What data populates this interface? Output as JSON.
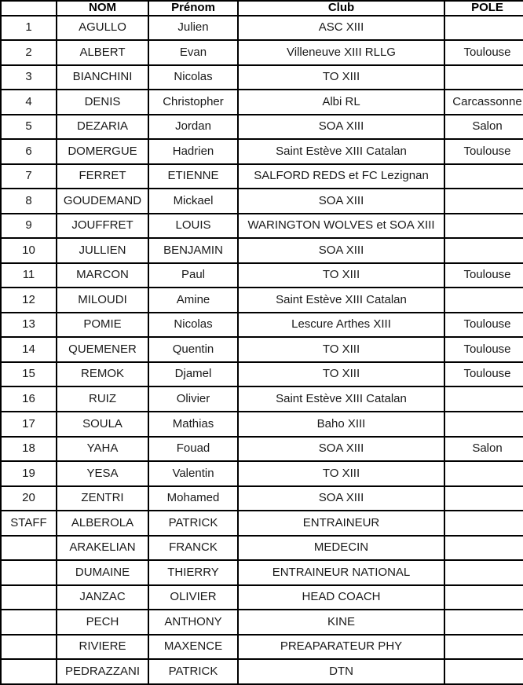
{
  "table": {
    "headers": [
      "",
      "NOM",
      "Prénom",
      "Club",
      "POLE"
    ],
    "rows": [
      [
        "1",
        "AGULLO",
        "Julien",
        "ASC XIII",
        ""
      ],
      [
        "2",
        "ALBERT",
        "Evan",
        "Villeneuve XIII RLLG",
        "Toulouse"
      ],
      [
        "3",
        "BIANCHINI",
        "Nicolas",
        "TO XIII",
        ""
      ],
      [
        "4",
        "DENIS",
        "Christopher",
        "Albi RL",
        "Carcassonne"
      ],
      [
        "5",
        "DEZARIA",
        "Jordan",
        "SOA XIII",
        "Salon"
      ],
      [
        "6",
        "DOMERGUE",
        "Hadrien",
        "Saint Estève XIII Catalan",
        "Toulouse"
      ],
      [
        "7",
        "FERRET",
        "ETIENNE",
        "SALFORD REDS et FC Lezignan",
        ""
      ],
      [
        "8",
        "GOUDEMAND",
        "Mickael",
        "SOA XIII",
        ""
      ],
      [
        "9",
        "JOUFFRET",
        "LOUIS",
        "WARINGTON WOLVES et SOA XIII",
        ""
      ],
      [
        "10",
        "JULLIEN",
        "BENJAMIN",
        "SOA XIII",
        ""
      ],
      [
        "11",
        "MARCON",
        "Paul",
        "TO XIII",
        "Toulouse"
      ],
      [
        "12",
        "MILOUDI",
        "Amine",
        "Saint Estève XIII Catalan",
        ""
      ],
      [
        "13",
        "POMIE",
        "Nicolas",
        "Lescure Arthes XIII",
        "Toulouse"
      ],
      [
        "14",
        "QUEMENER",
        "Quentin",
        "TO XIII",
        "Toulouse"
      ],
      [
        "15",
        "REMOK",
        "Djamel",
        "TO XIII",
        "Toulouse"
      ],
      [
        "16",
        "RUIZ",
        "Olivier",
        "Saint Estève XIII Catalan",
        ""
      ],
      [
        "17",
        "SOULA",
        "Mathias",
        "Baho XIII",
        ""
      ],
      [
        "18",
        "YAHA",
        "Fouad",
        "SOA XIII",
        "Salon"
      ],
      [
        "19",
        "YESA",
        "Valentin",
        "TO XIII",
        ""
      ],
      [
        "20",
        "ZENTRI",
        "Mohamed",
        "SOA XIII",
        ""
      ],
      [
        "STAFF",
        "ALBEROLA",
        "PATRICK",
        "ENTRAINEUR",
        ""
      ],
      [
        "",
        "ARAKELIAN",
        "FRANCK",
        "MEDECIN",
        ""
      ],
      [
        "",
        "DUMAINE",
        "THIERRY",
        "ENTRAINEUR NATIONAL",
        ""
      ],
      [
        "",
        "JANZAC",
        "OLIVIER",
        "HEAD COACH",
        ""
      ],
      [
        "",
        "PECH",
        "ANTHONY",
        "KINE",
        ""
      ],
      [
        "",
        "RIVIERE",
        "MAXENCE",
        "PREAPARATEUR PHY",
        ""
      ],
      [
        "",
        "PEDRAZZANI",
        "PATRICK",
        "DTN",
        ""
      ]
    ],
    "column_keys": [
      "num",
      "nom",
      "prenom",
      "club",
      "pole"
    ],
    "colors": {
      "border": "#000000",
      "text": "#1a1a1a",
      "background": "#ffffff"
    }
  }
}
